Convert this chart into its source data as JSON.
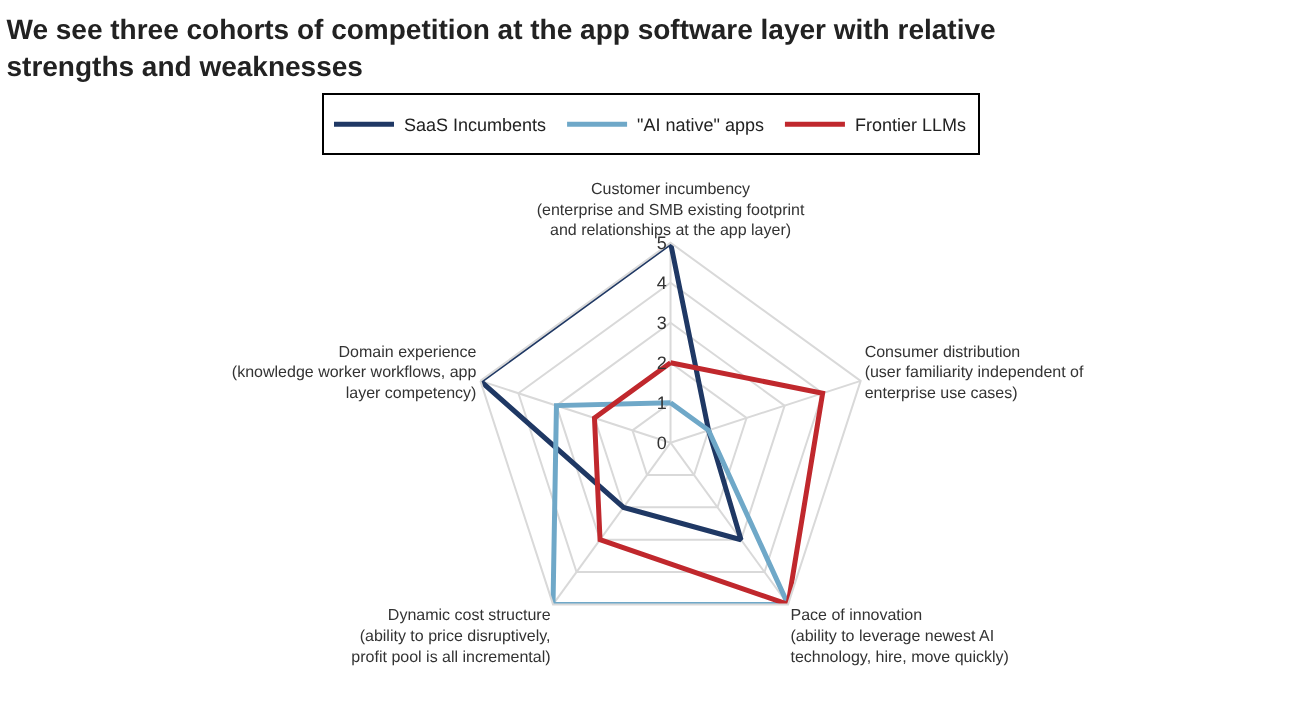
{
  "chart_data": {
    "type": "radar",
    "title": "We see three cohorts of competition at the app software layer with relative strengths and weaknesses",
    "categories": [
      "Customer incumbency (enterprise and SMB existing footprint and relationships at the app layer)",
      "Consumer distribution (user familiarity independent of enterprise use cases)",
      "Pace of innovation (ability to leverage newest AI technology, hire, move quickly)",
      "Dynamic cost structure (ability to price disruptively, profit pool is all incremental)",
      "Domain experience (knowledge worker workflows, app layer competency)"
    ],
    "series": [
      {
        "name": "SaaS Incumbents",
        "color": "#1f3864",
        "values": [
          5,
          1,
          3,
          2,
          5
        ]
      },
      {
        "name": "\"AI native\" apps",
        "color": "#6fa8c8",
        "values": [
          1,
          1,
          5,
          5,
          3
        ]
      },
      {
        "name": "Frontier LLMs",
        "color": "#c0282d",
        "values": [
          2,
          4,
          5,
          3,
          2
        ]
      }
    ],
    "ylim": [
      0,
      5
    ],
    "yticks": [
      0,
      1,
      2,
      3,
      4,
      5
    ],
    "grid": true,
    "legend": "top",
    "marker": "none",
    "line_style": "solid"
  }
}
